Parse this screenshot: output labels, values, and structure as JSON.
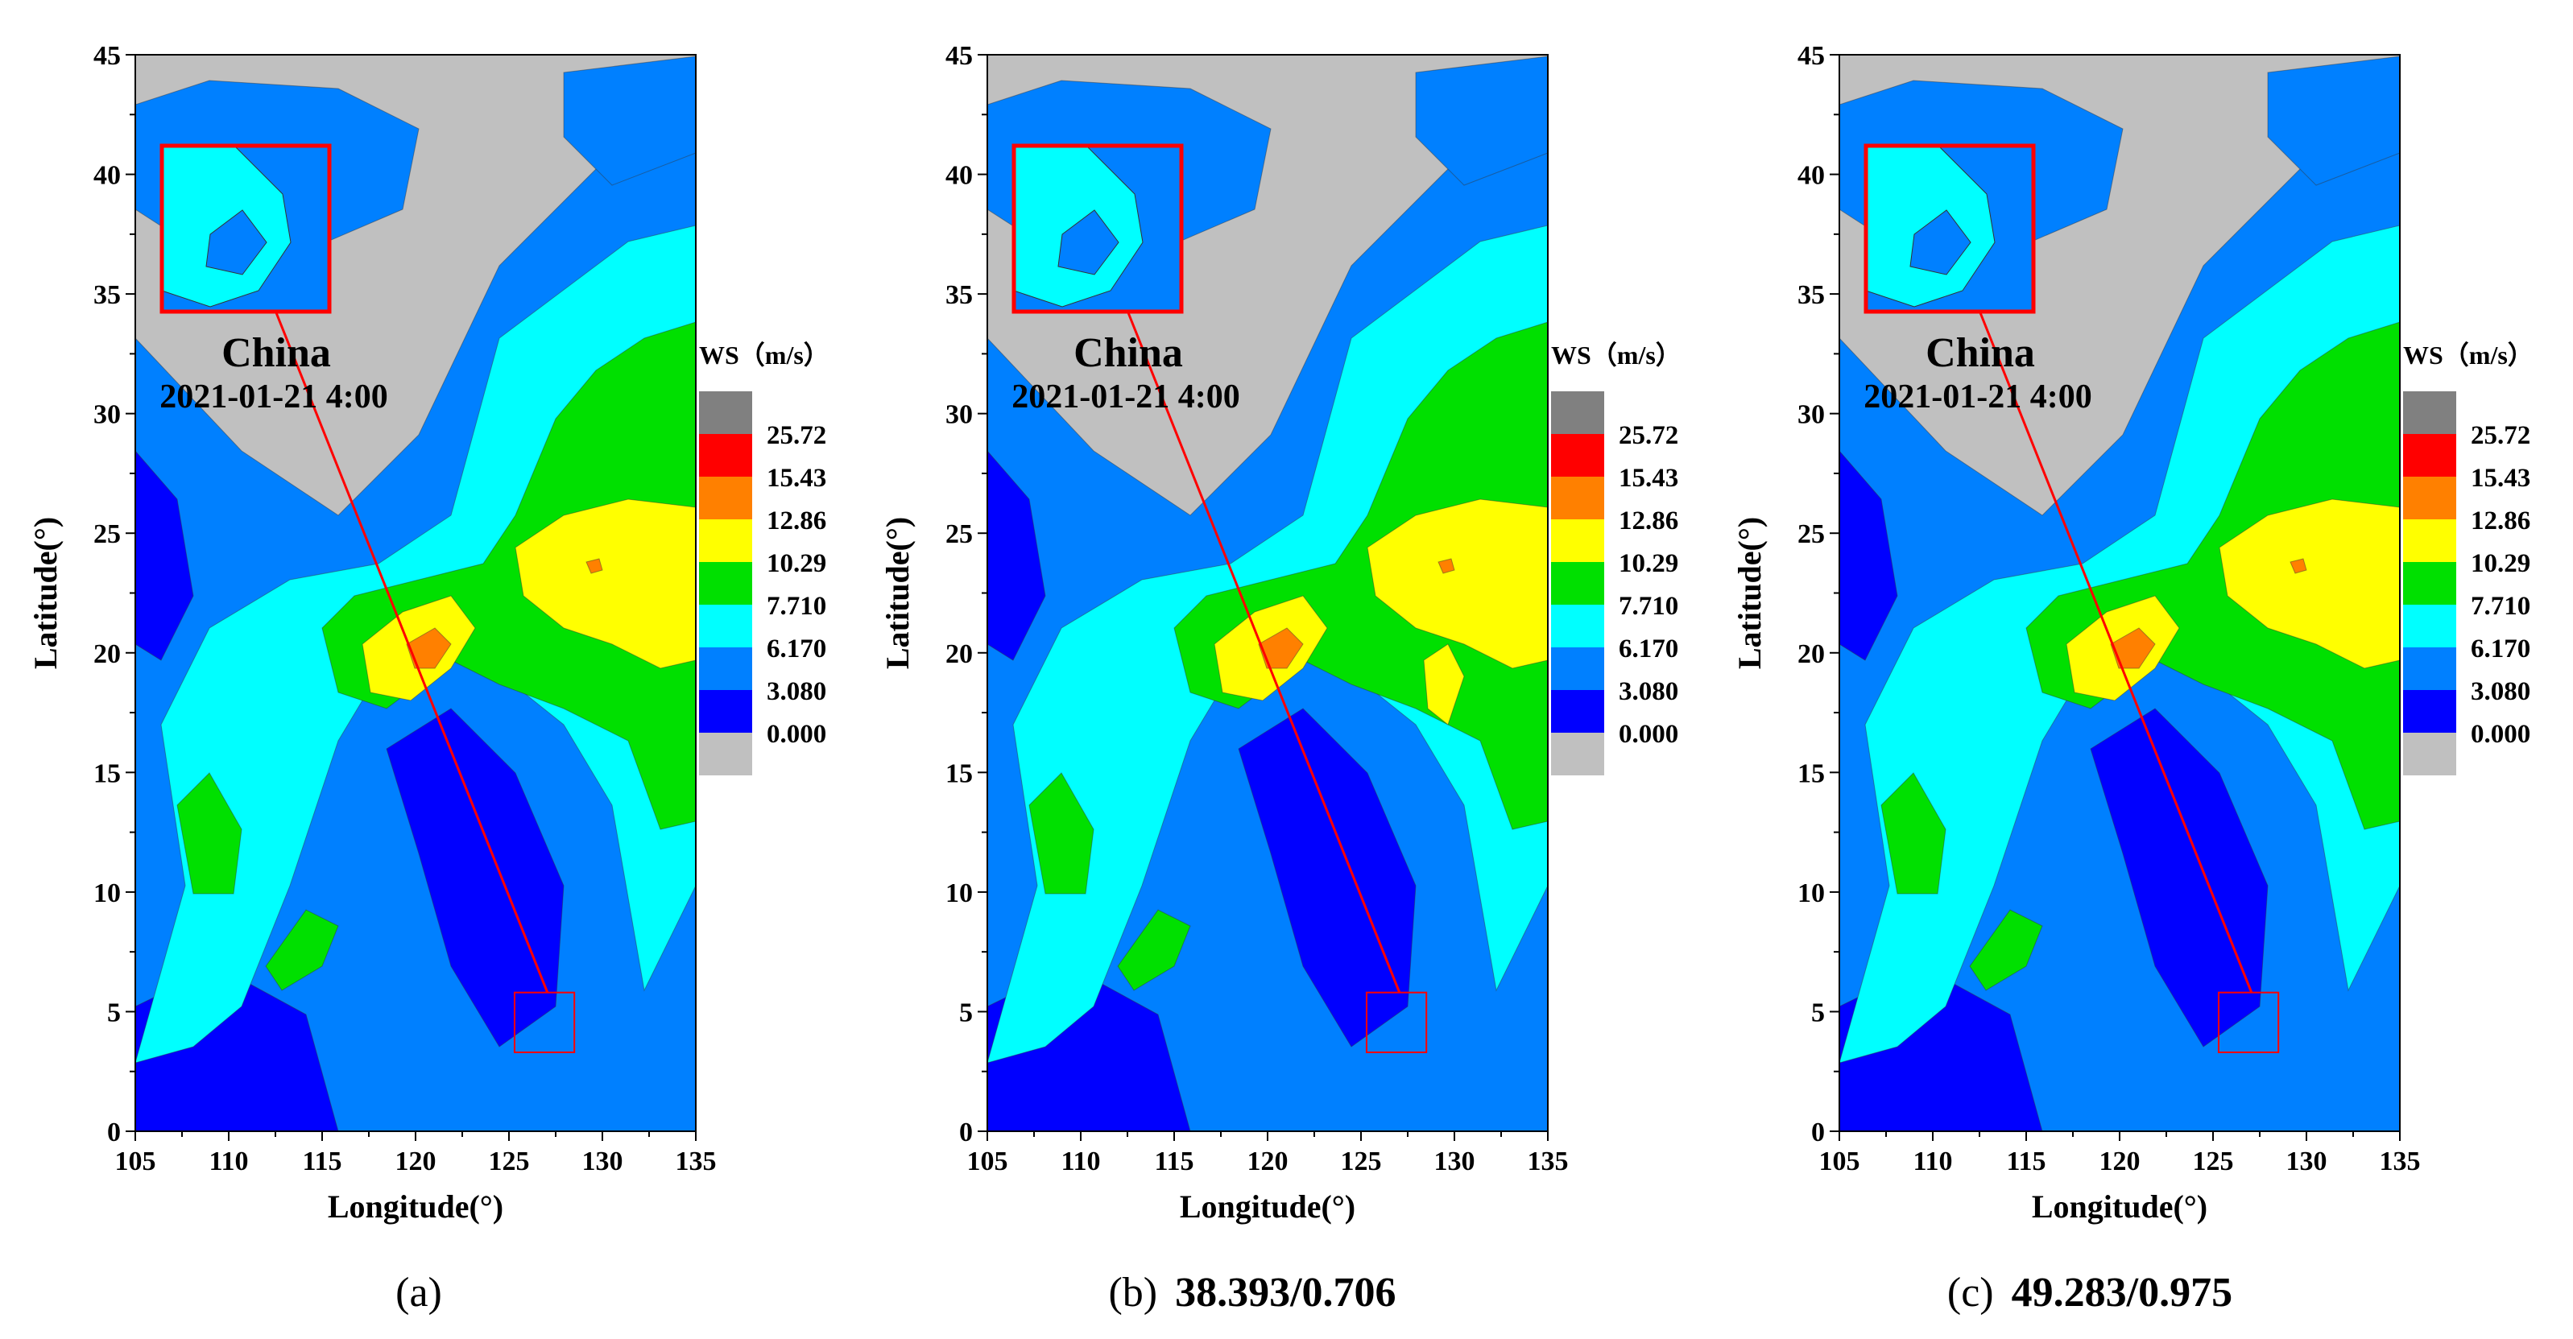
{
  "figure": {
    "panels": [
      {
        "caption_letter": "(a)",
        "caption_metric": ""
      },
      {
        "caption_letter": "(b)",
        "caption_metric": "38.393/0.706"
      },
      {
        "caption_letter": "(c)",
        "caption_metric": "49.283/0.975"
      }
    ],
    "overlay": {
      "region": "China",
      "datetime": "2021-01-21 4:00"
    },
    "legend": {
      "title": "WS（m/s）",
      "levels": [
        "25.72",
        "15.43",
        "12.86",
        "10.29",
        "7.710",
        "6.170",
        "3.080",
        "0.000"
      ],
      "colors": [
        "#808080",
        "#ff0000",
        "#ff8000",
        "#ffff00",
        "#00e000",
        "#00ffff",
        "#0080ff",
        "#0000ff",
        "#c0c0c0"
      ]
    }
  },
  "chart_data": [
    {
      "type": "heatmap",
      "title": "",
      "xlabel": "Longitude(°)",
      "ylabel": "Latitude(°)",
      "xlim": [
        105,
        135
      ],
      "ylim": [
        0,
        45
      ],
      "xticks": [
        105,
        110,
        115,
        120,
        125,
        130,
        135
      ],
      "yticks": [
        0,
        5,
        10,
        15,
        20,
        25,
        30,
        35,
        40,
        45
      ],
      "inset_zoom_region": {
        "lon": [
          125.3,
          128.5
        ],
        "lat": [
          3.3,
          5.8
        ]
      },
      "zones": [
        {
          "level": "12.86",
          "lon": 120,
          "lat": 20
        },
        {
          "level": "10.29",
          "lon": 131.5,
          "lat": 22.5
        },
        {
          "level": "7.710",
          "lon": 130,
          "lat": 27
        }
      ]
    },
    {
      "type": "heatmap",
      "title": "",
      "xlabel": "Longitude(°)",
      "ylabel": "Latitude(°)",
      "xlim": [
        105,
        135
      ],
      "ylim": [
        0,
        45
      ],
      "xticks": [
        105,
        110,
        115,
        120,
        125,
        130,
        135
      ],
      "yticks": [
        0,
        5,
        10,
        15,
        20,
        25,
        30,
        35,
        40,
        45
      ],
      "inset_zoom_region": {
        "lon": [
          125.3,
          128.5
        ],
        "lat": [
          3.3,
          5.8
        ]
      },
      "zones": [
        {
          "level": "12.86",
          "lon": 120,
          "lat": 20
        },
        {
          "level": "10.29",
          "lon": 131.5,
          "lat": 22.5
        },
        {
          "level": "7.710",
          "lon": 130,
          "lat": 27
        }
      ]
    },
    {
      "type": "heatmap",
      "title": "",
      "xlabel": "Longitude(°)",
      "ylabel": "Latitude(°)",
      "xlim": [
        105,
        135
      ],
      "ylim": [
        0,
        45
      ],
      "xticks": [
        105,
        110,
        115,
        120,
        125,
        130,
        135
      ],
      "yticks": [
        0,
        5,
        10,
        15,
        20,
        25,
        30,
        35,
        40,
        45
      ],
      "inset_zoom_region": {
        "lon": [
          125.3,
          128.5
        ],
        "lat": [
          3.3,
          5.8
        ]
      },
      "zones": [
        {
          "level": "12.86",
          "lon": 120,
          "lat": 20
        },
        {
          "level": "10.29",
          "lon": 131.5,
          "lat": 22.5
        },
        {
          "level": "7.710",
          "lon": 130,
          "lat": 27
        }
      ]
    }
  ]
}
